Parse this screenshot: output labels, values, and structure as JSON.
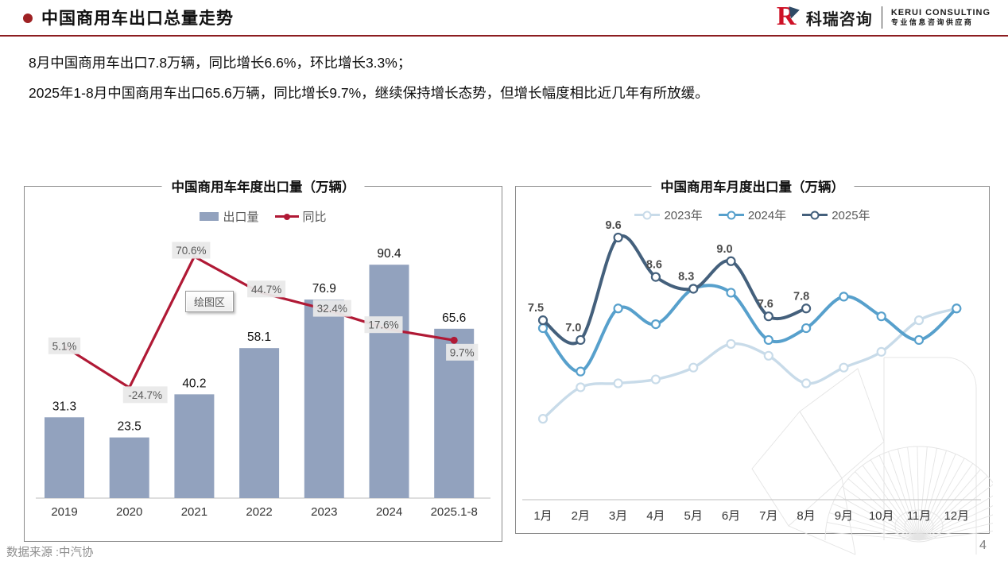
{
  "header": {
    "title": "中国商用车出口总量走势",
    "logo": {
      "mark": "R",
      "name_cn": "科瑞咨询",
      "name_en": "KERUI CONSULTING",
      "tagline": "专业信息咨询供应商"
    }
  },
  "summary": {
    "line1": "8月中国商用车出口7.8万辆，同比增长6.6%，环比增长3.3%；",
    "line2": "2025年1-8月中国商用车出口65.6万辆，同比增长9.7%，继续保持增长态势，但增长幅度相比近几年有所放缓。"
  },
  "colors": {
    "accent_red": "#9e2123",
    "rule_red": "#8c1d20",
    "bar": "#92a2be",
    "line_red": "#b01935",
    "pct_label_bg": "#e9e9e9",
    "pct_label_text": "#595959",
    "s2023": "#c8dbe9",
    "s2024": "#57a0cc",
    "s2025": "#44607c",
    "axis_grey": "#c9c9c9",
    "watermark": "#e4e4e4"
  },
  "chart_data": [
    {
      "type": "bar",
      "title": "中国商用车年度出口量（万辆）",
      "categories": [
        "2019",
        "2020",
        "2021",
        "2022",
        "2023",
        "2024",
        "2025.1-8"
      ],
      "series": [
        {
          "name": "出口量",
          "type": "bar",
          "values": [
            31.3,
            23.5,
            40.2,
            58.1,
            76.9,
            90.4,
            65.6
          ],
          "labels": [
            "31.3",
            "23.5",
            "40.2",
            "58.1",
            "76.9",
            "90.4",
            "65.6"
          ]
        },
        {
          "name": "同比",
          "type": "line",
          "values_pct": [
            5.1,
            -24.7,
            70.6,
            44.7,
            32.4,
            17.6,
            9.7
          ],
          "labels": [
            "5.1%",
            "-24.7%",
            "70.6%",
            "44.7%",
            "32.4%",
            "17.6%",
            "9.7%"
          ]
        }
      ],
      "legend_position": "top",
      "grid": false,
      "tooltip": "绘图区"
    },
    {
      "type": "line",
      "title": "中国商用车月度出口量（万辆）",
      "categories": [
        "1月",
        "2月",
        "3月",
        "4月",
        "5月",
        "6月",
        "7月",
        "8月",
        "9月",
        "10月",
        "11月",
        "12月"
      ],
      "series": [
        {
          "name": "2023年",
          "values": [
            5.0,
            5.8,
            5.9,
            6.0,
            6.3,
            6.9,
            6.6,
            5.9,
            6.3,
            6.7,
            7.5,
            7.8
          ]
        },
        {
          "name": "2024年",
          "values": [
            7.3,
            6.2,
            7.8,
            7.4,
            8.3,
            8.2,
            7.0,
            7.3,
            8.1,
            7.6,
            7.0,
            7.8
          ]
        },
        {
          "name": "2025年",
          "values": [
            7.5,
            7.0,
            9.6,
            8.6,
            8.3,
            9.0,
            7.6,
            7.8
          ],
          "labels": [
            "7.5",
            "7.0",
            "9.6",
            "8.6",
            "8.3",
            "9.0",
            "7.6",
            "7.8"
          ]
        }
      ],
      "legend_position": "top",
      "grid": false,
      "smooth": true
    }
  ],
  "footer": {
    "source": "数据来源 :中汽协",
    "page": "4"
  }
}
